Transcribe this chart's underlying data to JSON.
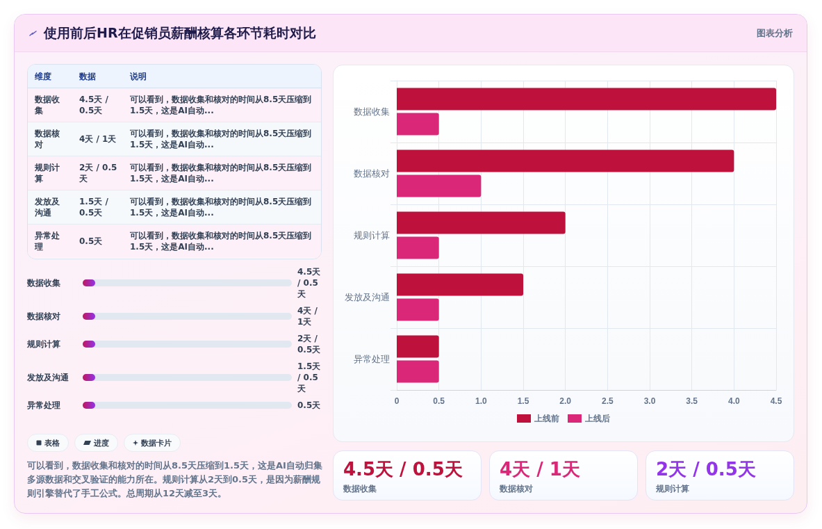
{
  "chart_data": [
    {
      "type": "other",
      "title": "使用前后HR在促销员薪酬核算各环节耗时对比",
      "annotations": [
        "图表分析"
      ]
    },
    {
      "type": "other",
      "annotations": [
        "维度",
        "数据",
        "说明",
        "数据收集",
        "4.5天 / 0.5天",
        "可以看到，数据收集和核对的时间从8.5天压缩到1.5天，这是AI自动...",
        "数据核对",
        "4天 / 1天",
        "可以看到，数据收集和核对的时间从8.5天压缩到1.5天，这是AI自动...",
        "规则计算",
        "2天 / 0.5天",
        "可以看到，数据收集和核对的时间从8.5天压缩到1.5天，这是AI自动...",
        "发放及沟通",
        "1.5天 / 0.5天",
        "可以看到，数据收集和核对的时间从8.5天压缩到1.5天，这是AI自动...",
        "异常处理",
        "0.5天",
        "可以看到，数据收集和核对的时间从8.5天压缩到1.5天，这是AI自动..."
      ]
    },
    {
      "type": "other",
      "categories": [
        "数据收集",
        "数据核对",
        "规则计算",
        "发放及沟通",
        "异常处理"
      ],
      "value_labels": [
        "4.5天 / 0.5天",
        "4天 / 1天",
        "2天 / 0.5天",
        "1.5天 / 0.5天",
        "0.5天"
      ]
    },
    {
      "type": "other",
      "annotations": [
        "表格",
        "进度",
        "数据卡片",
        "可以看到，数据收集和核对的时间从8.5天压缩到1.5天，这是AI自动归集多源数据和交叉验证的能力所在。规则计算从2天到0.5天，是因为薪酬规则引擎替代了手工公式。总周期从12天减至3天。"
      ]
    },
    {
      "type": "bar",
      "orientation": "horizontal",
      "categories": [
        "数据收集",
        "数据核对",
        "规则计算",
        "发放及沟通",
        "异常处理"
      ],
      "series": [
        {
          "name": "上线前",
          "color": "#be123c",
          "values": [
            4.5,
            4,
            2,
            1.5,
            0.5
          ]
        },
        {
          "name": "上线后",
          "color": "#db2777",
          "values": [
            0.5,
            1,
            0.5,
            0.5,
            0.5
          ]
        }
      ],
      "xlim": [
        0,
        4.5
      ],
      "xticks": [
        0,
        0.5,
        {
          "value": 1,
          "label": "1.0"
        },
        1.5,
        {
          "value": 2,
          "label": "2.0"
        },
        2.5,
        {
          "value": 3,
          "label": "3.0"
        },
        3.5,
        {
          "value": 4,
          "label": "4.0"
        },
        4.5
      ],
      "grid": true,
      "legend": "bottom"
    },
    {
      "type": "other",
      "categories": [
        "数据收集",
        "数据核对",
        "规则计算"
      ],
      "value_labels": [
        "4.5天 / 0.5天",
        "4天 / 1天",
        "2天 / 0.5天"
      ]
    }
  ]
}
